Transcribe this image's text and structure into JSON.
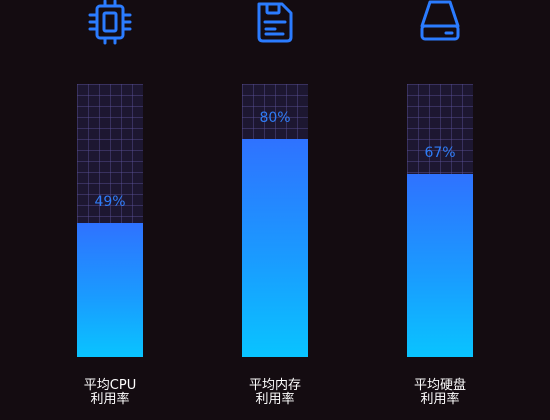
{
  "chart_data": {
    "type": "bar",
    "categories": [
      "平均CPU利用率",
      "平均内存利用率",
      "平均硬盘利用率"
    ],
    "label_lines": [
      [
        "平均CPU",
        "利用率"
      ],
      [
        "平均内存",
        "利用率"
      ],
      [
        "平均硬盘",
        "利用率"
      ]
    ],
    "values": [
      49,
      80,
      67
    ],
    "value_labels": [
      "49%",
      "80%",
      "67%"
    ],
    "ylim": [
      0,
      100
    ],
    "icons": [
      "cpu-chip-icon",
      "memory-card-icon",
      "hard-disk-icon"
    ],
    "colors": {
      "background": "#140c11",
      "icon": "#2b7cff",
      "bar_top": "#2f72ff",
      "bar_bottom": "#09c4ff",
      "track": "#1d1731",
      "value_text": "#2f7cf6",
      "label_text": "#ffffff"
    }
  }
}
